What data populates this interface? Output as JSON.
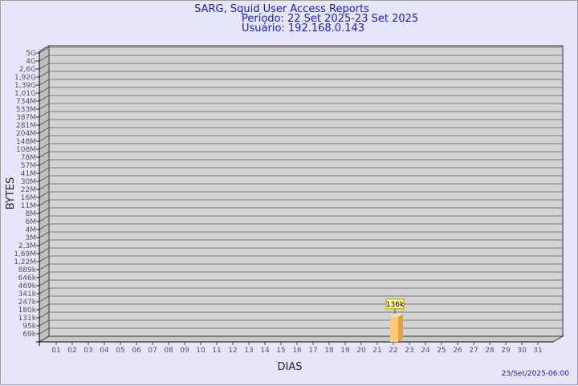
{
  "title_lines": [
    "SARG, Squid User Access Reports",
    "Período: 22 Set 2025-23 Set 2025",
    "Usuário: 192.168.0.143"
  ],
  "footer_timestamp": "23/Set/2025-06:00",
  "chart_data": {
    "type": "bar",
    "title": "SARG, Squid User Access Reports",
    "xlabel": "DIAS",
    "ylabel": "BYTES",
    "y_scale": "log",
    "categories": [
      "01",
      "02",
      "03",
      "04",
      "05",
      "06",
      "07",
      "08",
      "09",
      "10",
      "11",
      "12",
      "13",
      "14",
      "15",
      "16",
      "17",
      "18",
      "19",
      "20",
      "21",
      "22",
      "23",
      "24",
      "25",
      "26",
      "27",
      "28",
      "29",
      "30",
      "31"
    ],
    "y_ticks": [
      "5G",
      "4G",
      "2,6G",
      "1,92G",
      "1,39G",
      "1,01G",
      "734M",
      "533M",
      "387M",
      "281M",
      "204M",
      "148M",
      "108M",
      "78M",
      "57M",
      "41M",
      "30M",
      "22M",
      "16M",
      "11M",
      "8M",
      "6M",
      "4M",
      "3M",
      "2,3M",
      "1,69M",
      "1,22M",
      "889k",
      "646k",
      "469k",
      "341k",
      "247k",
      "180k",
      "131k",
      "95k",
      "69k"
    ],
    "bars": [
      {
        "category": "22",
        "value": 136000,
        "label": "136k"
      }
    ],
    "grid": true,
    "colors": {
      "bar": "#ffc878",
      "bar_side": "#e0a050",
      "panel": "#d3d3d3",
      "background": "#e6e6fa",
      "title": "#1c1cb4"
    }
  }
}
